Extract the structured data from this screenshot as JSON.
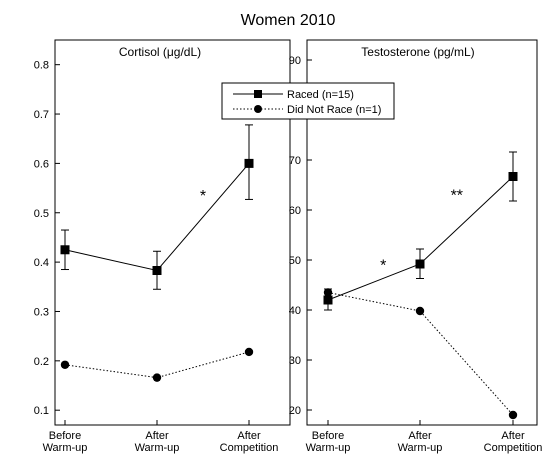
{
  "figure_title": "Women 2010",
  "legend": {
    "raced": "Raced (n=15)",
    "did_not_race": "Did Not Race (n=1)"
  },
  "categories": [
    "Before Warm-up",
    "After Warm-up",
    "After Competition"
  ],
  "category_lines": [
    [
      "Before",
      "Warm-up"
    ],
    [
      "After",
      "Warm-up"
    ],
    [
      "After",
      "Competition"
    ]
  ],
  "chart_data": [
    {
      "type": "line",
      "title": "Cortisol (μg/dL)",
      "categories": [
        "Before Warm-up",
        "After Warm-up",
        "After Competition"
      ],
      "ylim": [
        0.07,
        0.85
      ],
      "yticks": [
        0.1,
        0.2,
        0.3,
        0.4,
        0.5,
        0.6,
        0.7,
        0.8
      ],
      "ytick_labels": [
        "0.1",
        "0.2",
        "0.3",
        "0.4",
        "0.5",
        "0.6",
        "0.7",
        "0.8"
      ],
      "grid": false,
      "legend_position": "top-right",
      "series": [
        {
          "name": "Raced (n=15)",
          "values": [
            0.425,
            0.383,
            0.6
          ],
          "err_low": [
            0.385,
            0.345,
            0.527
          ],
          "err_high": [
            0.465,
            0.422,
            0.678
          ],
          "marker": "square",
          "line": "solid"
        },
        {
          "name": "Did Not Race (n=1)",
          "values": [
            0.192,
            0.166,
            0.218
          ],
          "marker": "circle",
          "line": "dotted"
        }
      ],
      "annotations": [
        {
          "text": "*",
          "x": 1.5,
          "y": 0.54
        }
      ]
    },
    {
      "type": "line",
      "title": "Testosterone (pg/mL)",
      "categories": [
        "Before Warm-up",
        "After Warm-up",
        "After Competition"
      ],
      "ylim": [
        17,
        94
      ],
      "yticks": [
        20,
        30,
        40,
        50,
        60,
        70,
        80,
        90
      ],
      "ytick_labels": [
        "20",
        "30",
        "40",
        "50",
        "60",
        "70",
        "80",
        "90"
      ],
      "grid": false,
      "series": [
        {
          "name": "Raced (n=15)",
          "values": [
            42,
            49.2,
            66.7
          ],
          "err_low": [
            40,
            46.3,
            61.8
          ],
          "err_high": [
            44.2,
            52.2,
            71.6
          ],
          "marker": "square",
          "line": "solid"
        },
        {
          "name": "Did Not Race (n=1)",
          "values": [
            43.5,
            39.8,
            19
          ],
          "marker": "circle",
          "line": "dotted"
        }
      ],
      "annotations": [
        {
          "text": "*",
          "x": 0.6,
          "y": 49.5
        },
        {
          "text": "**",
          "x": 1.4,
          "y": 63.5
        }
      ]
    }
  ]
}
